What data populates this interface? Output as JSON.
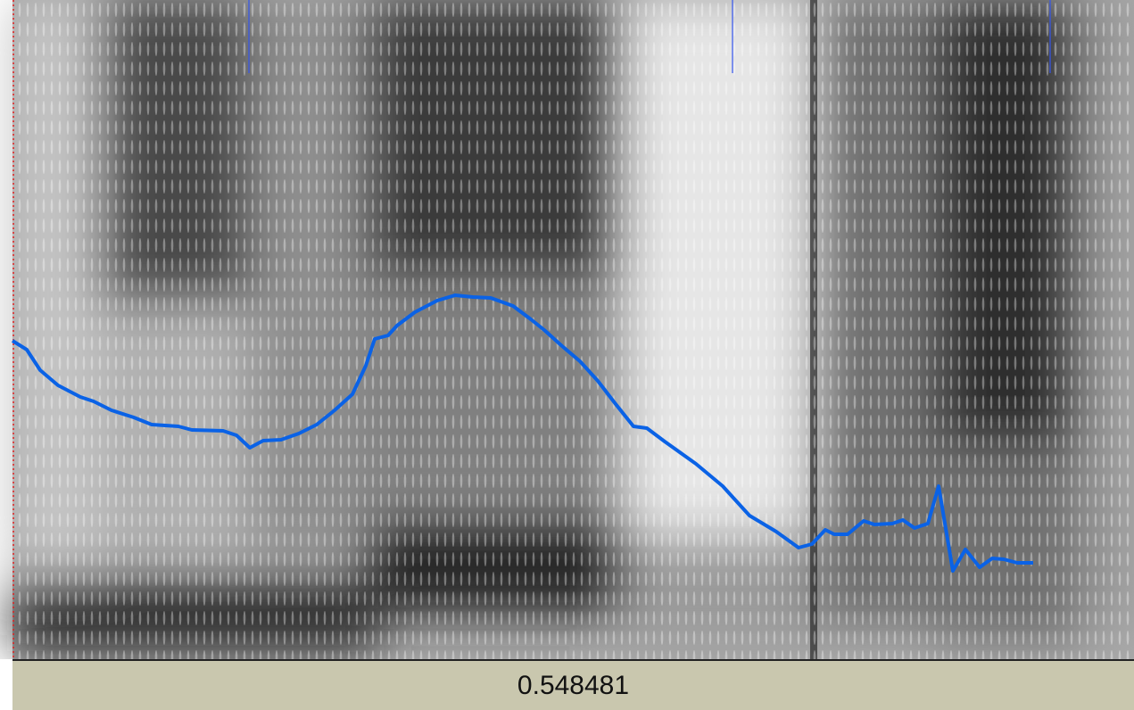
{
  "status_bar": {
    "selection_duration": "0.548481"
  }
}
